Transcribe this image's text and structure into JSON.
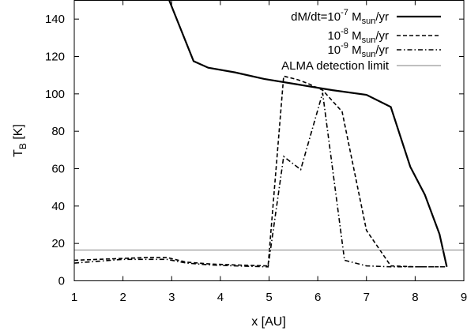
{
  "chart_data": {
    "type": "line",
    "title": "",
    "xlabel": "x [AU]",
    "ylabel": "T_B [K]",
    "xlim": [
      1,
      9
    ],
    "ylim": [
      0,
      150
    ],
    "xticks": [
      1,
      2,
      3,
      4,
      5,
      6,
      7,
      8,
      9
    ],
    "yticks": [
      0,
      20,
      40,
      60,
      80,
      100,
      120,
      140
    ],
    "grid": false,
    "legend_position": "top-right",
    "series": [
      {
        "name": "dM/dt=10^-7 M_sun/yr",
        "label_parts": {
          "prefix": "dM/dt=10",
          "exp": "-7",
          "unit_main": " M",
          "unit_sub": "sun",
          "unit_tail": "/yr"
        },
        "line_style": "solid",
        "line_width": "thick",
        "color": "#000000",
        "x": [
          2.95,
          3.45,
          3.75,
          4.3,
          4.9,
          5.6,
          6.3,
          7.0,
          7.5,
          7.9,
          8.2,
          8.5,
          8.65
        ],
        "y": [
          150,
          117.5,
          114,
          111.5,
          108,
          105,
          102,
          99.5,
          93,
          61,
          46,
          25,
          7.5
        ]
      },
      {
        "name": "10^-8 M_sun/yr",
        "label_parts": {
          "prefix": "10",
          "exp": "-8",
          "unit_main": " M",
          "unit_sub": "sun",
          "unit_tail": "/yr"
        },
        "line_style": "dashed",
        "line_width": "normal",
        "color": "#000000",
        "x": [
          1.0,
          1.5,
          2.0,
          2.5,
          2.9,
          3.3,
          3.8,
          4.3,
          4.98,
          5.3,
          5.6,
          5.8,
          6.1,
          6.5,
          7.0,
          7.5,
          8.0,
          8.5,
          8.65
        ],
        "y": [
          11,
          11.5,
          12,
          12.5,
          12.5,
          10,
          9,
          8.5,
          8,
          109.5,
          107.5,
          105.5,
          102,
          90.5,
          27,
          8,
          7.5,
          7.5,
          7.5
        ]
      },
      {
        "name": "10^-9 M_sun/yr",
        "label_parts": {
          "prefix": "10",
          "exp": "-9",
          "unit_main": " M",
          "unit_sub": "sun",
          "unit_tail": "/yr"
        },
        "line_style": "dash-dot",
        "line_width": "normal",
        "color": "#000000",
        "x": [
          1.0,
          1.5,
          2.0,
          2.5,
          2.9,
          3.3,
          3.8,
          4.3,
          4.98,
          5.3,
          5.65,
          6.1,
          6.55,
          7.0,
          7.5,
          8.0,
          8.5,
          8.65
        ],
        "y": [
          9.5,
          10.5,
          11.5,
          11.5,
          11.5,
          9.5,
          8.5,
          8,
          7.5,
          66.5,
          59.5,
          100.5,
          11,
          8,
          7.5,
          7.5,
          7.5,
          7.5
        ]
      },
      {
        "name": "ALMA detection limit",
        "label_parts": {
          "prefix": "ALMA detection limit",
          "exp": "",
          "unit_main": "",
          "unit_sub": "",
          "unit_tail": ""
        },
        "line_style": "solid",
        "line_width": "thin",
        "color": "#808080",
        "x": [
          1.0,
          9.0
        ],
        "y": [
          16.5,
          16.5
        ]
      }
    ]
  }
}
